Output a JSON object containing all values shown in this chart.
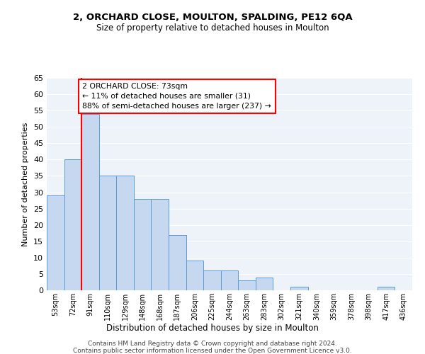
{
  "title1": "2, ORCHARD CLOSE, MOULTON, SPALDING, PE12 6QA",
  "title2": "Size of property relative to detached houses in Moulton",
  "xlabel": "Distribution of detached houses by size in Moulton",
  "ylabel": "Number of detached properties",
  "categories": [
    "53sqm",
    "72sqm",
    "91sqm",
    "110sqm",
    "129sqm",
    "148sqm",
    "168sqm",
    "187sqm",
    "206sqm",
    "225sqm",
    "244sqm",
    "263sqm",
    "283sqm",
    "302sqm",
    "321sqm",
    "340sqm",
    "359sqm",
    "378sqm",
    "398sqm",
    "417sqm",
    "436sqm"
  ],
  "values": [
    29,
    40,
    54,
    35,
    35,
    28,
    28,
    17,
    9,
    6,
    6,
    3,
    4,
    0,
    1,
    0,
    0,
    0,
    0,
    1,
    0
  ],
  "bar_color": "#c5d8f0",
  "bar_edge_color": "#5b9bd5",
  "property_line_x": 1.5,
  "annotation_text": "2 ORCHARD CLOSE: 73sqm\n← 11% of detached houses are smaller (31)\n88% of semi-detached houses are larger (237) →",
  "annotation_box_color": "white",
  "annotation_box_edge_color": "red",
  "property_line_color": "red",
  "ylim": [
    0,
    65
  ],
  "yticks": [
    0,
    5,
    10,
    15,
    20,
    25,
    30,
    35,
    40,
    45,
    50,
    55,
    60,
    65
  ],
  "background_color": "#eef2f9",
  "grid_color": "white",
  "footer1": "Contains HM Land Registry data © Crown copyright and database right 2024.",
  "footer2": "Contains public sector information licensed under the Open Government Licence v3.0."
}
